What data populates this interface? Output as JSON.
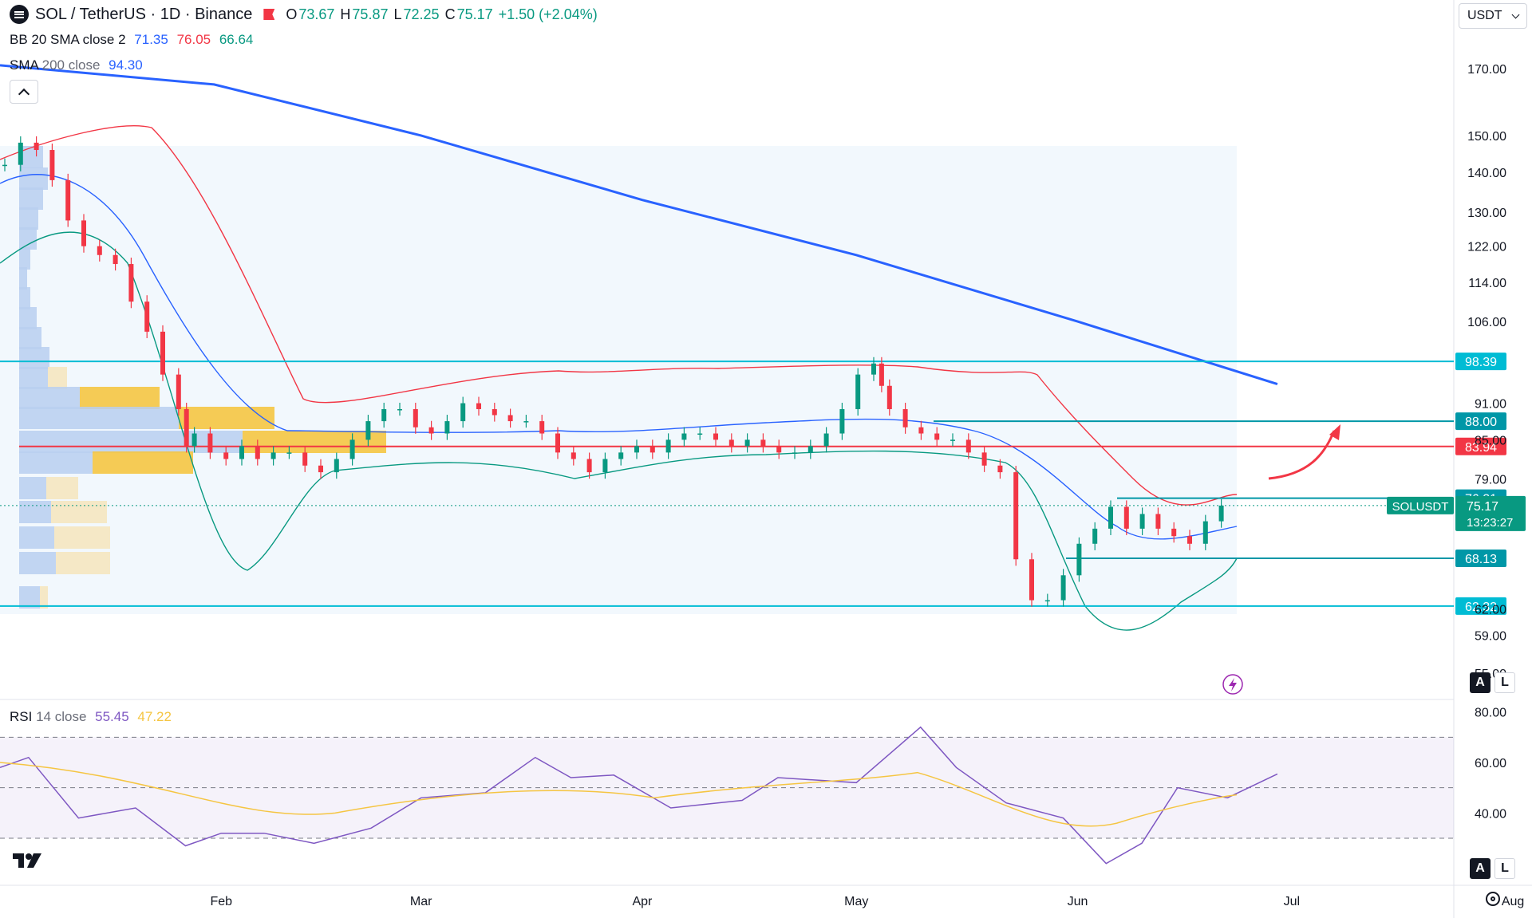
{
  "header": {
    "symbol": "SOL / TetherUS · 1D · Binance",
    "ohlc": {
      "open_label": "O",
      "open": "73.67",
      "high_label": "H",
      "high": "75.87",
      "low_label": "L",
      "low": "72.25",
      "close_label": "C",
      "close": "75.17",
      "change": "+1.50 (+2.04%)"
    },
    "currency": "USDT"
  },
  "indicators": {
    "bb": {
      "label": "BB",
      "params": "20 SMA close 2",
      "basis": "71.35",
      "upper": "76.05",
      "lower": "66.64"
    },
    "sma": {
      "label": "SMA",
      "params": "200 close",
      "value": "94.30"
    },
    "rsi": {
      "label": "RSI",
      "params": "14 close",
      "value": "55.45",
      "ma": "47.22"
    }
  },
  "colors": {
    "up": "#089981",
    "down": "#f23645",
    "sma200": "#2962ff",
    "bb_basis": "#2962ff",
    "bb_upper": "#f23645",
    "bb_lower": "#089981",
    "level": "#00bcd4",
    "rsi_line": "#7e57c2",
    "rsi_ma": "#f5c542",
    "volume_profile": "#f5c542",
    "poc": "#f23645"
  },
  "icons": {
    "symbol": "solana-icon",
    "flag": "flag-icon",
    "collapse": "chevron-up-icon",
    "logo": "tradingview-logo-icon",
    "settings": "gear-icon",
    "alert": "lightning-icon"
  },
  "price_axis": {
    "ticks": [
      "170.00",
      "150.00",
      "140.00",
      "130.00",
      "122.00",
      "114.00",
      "106.00",
      "91.00",
      "85.00",
      "79.00",
      "62.00",
      "59.00",
      "55.00"
    ]
  },
  "rsi_axis": {
    "ticks": [
      "80.00",
      "60.00",
      "40.00"
    ],
    "bands": [
      70,
      50,
      30
    ]
  },
  "time_axis": {
    "labels": [
      "Feb",
      "Mar",
      "Apr",
      "May",
      "Jun",
      "Jul",
      "Aug"
    ]
  },
  "badges": {
    "buttons": {
      "auto": "A",
      "log": "L"
    }
  },
  "chart_data": {
    "type": "candlestick",
    "price_scale": "log",
    "ylim": [
      52.5,
      182
    ],
    "levels": [
      {
        "price": 98.39,
        "label": "98.39",
        "color": "#00bcd4"
      },
      {
        "price": 88.0,
        "label": "88.00",
        "color": "#0097a7"
      },
      {
        "price": 83.94,
        "label": "83.94",
        "color": "#f23645"
      },
      {
        "price": 76.21,
        "label": "76.21",
        "color": "#0097a7"
      },
      {
        "price": 68.13,
        "label": "68.13",
        "color": "#0097a7"
      },
      {
        "price": 62.32,
        "label": "62.32",
        "color": "#00bcd4"
      }
    ],
    "last_price": {
      "symbol": "SOLUSDT",
      "price": "75.17",
      "countdown": "13:23:27"
    },
    "sma200": [
      {
        "date": "2022-01-01",
        "value": 171
      },
      {
        "date": "2022-01-31",
        "value": 165
      },
      {
        "date": "2022-03-01",
        "value": 150
      },
      {
        "date": "2022-04-01",
        "value": 133
      },
      {
        "date": "2022-05-01",
        "value": 120
      },
      {
        "date": "2022-06-01",
        "value": 106
      },
      {
        "date": "2022-06-29",
        "value": 94.3
      }
    ],
    "rsi": [
      {
        "date": "2022-01-01",
        "value": 58
      },
      {
        "date": "2022-01-05",
        "value": 62
      },
      {
        "date": "2022-01-12",
        "value": 38
      },
      {
        "date": "2022-01-20",
        "value": 42
      },
      {
        "date": "2022-01-27",
        "value": 27
      },
      {
        "date": "2022-02-01",
        "value": 32
      },
      {
        "date": "2022-02-07",
        "value": 32
      },
      {
        "date": "2022-02-14",
        "value": 28
      },
      {
        "date": "2022-02-22",
        "value": 34
      },
      {
        "date": "2022-03-01",
        "value": 46
      },
      {
        "date": "2022-03-10",
        "value": 48
      },
      {
        "date": "2022-03-17",
        "value": 62
      },
      {
        "date": "2022-03-22",
        "value": 54
      },
      {
        "date": "2022-03-28",
        "value": 55
      },
      {
        "date": "2022-04-05",
        "value": 42
      },
      {
        "date": "2022-04-15",
        "value": 45
      },
      {
        "date": "2022-04-20",
        "value": 54
      },
      {
        "date": "2022-05-01",
        "value": 52
      },
      {
        "date": "2022-05-10",
        "value": 74
      },
      {
        "date": "2022-05-15",
        "value": 58
      },
      {
        "date": "2022-05-22",
        "value": 44
      },
      {
        "date": "2022-05-30",
        "value": 38
      },
      {
        "date": "2022-06-05",
        "value": 20
      },
      {
        "date": "2022-06-10",
        "value": 28
      },
      {
        "date": "2022-06-15",
        "value": 50
      },
      {
        "date": "2022-06-22",
        "value": 46
      },
      {
        "date": "2022-06-29",
        "value": 55.45
      }
    ]
  }
}
